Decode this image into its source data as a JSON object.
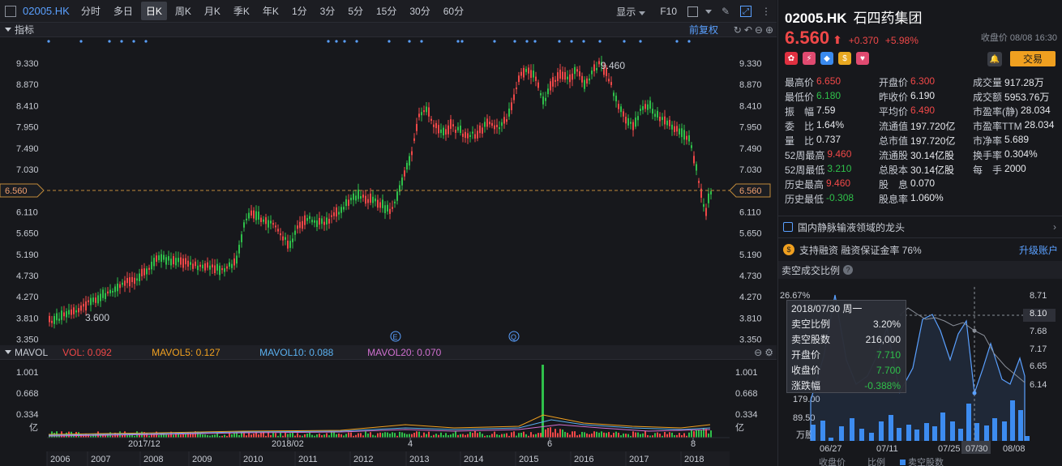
{
  "toolbar": {
    "code": "02005.HK",
    "periods": [
      "分时",
      "多日",
      "日K",
      "周K",
      "月K",
      "季K",
      "年K",
      "1分",
      "3分",
      "5分",
      "15分",
      "30分",
      "60分"
    ],
    "active_period": "日K",
    "display_label": "显示",
    "f10_label": "F10"
  },
  "indicator_bar": {
    "label": "指标",
    "fq_label": "前复权"
  },
  "price_chart": {
    "y_ticks": [
      "9.330",
      "8.870",
      "8.410",
      "7.950",
      "7.490",
      "7.030",
      "6.560",
      "6.110",
      "5.650",
      "5.190",
      "4.730",
      "4.270",
      "3.810",
      "3.350"
    ],
    "current_price_label": "6.560",
    "high_annotation": "9.460",
    "low_annotation": "3.600",
    "event_markers": [
      "E",
      "Q"
    ]
  },
  "volume_bar": {
    "label": "MAVOL",
    "vol": "VOL: 0.092",
    "ma5": "MAVOL5: 0.127",
    "ma10": "MAVOL10: 0.088",
    "ma20": "MAVOL20: 0.070",
    "colors": {
      "vol": "#f04848",
      "ma5": "#f0a020",
      "ma10": "#5ab0f0",
      "ma20": "#d070d0"
    }
  },
  "volume_chart": {
    "y_ticks": [
      "1.001",
      "0.668",
      "0.334"
    ],
    "unit": "亿",
    "month_labels": [
      "2017/12",
      "2018/02",
      "4",
      "6",
      "8"
    ],
    "year_labels": [
      "2006",
      "2007",
      "2008",
      "2009",
      "2010",
      "2011",
      "2012",
      "2013",
      "2014",
      "2015",
      "2016",
      "2017",
      "2018"
    ]
  },
  "quote": {
    "code": "02005.HK",
    "name": "石四药集团",
    "price": "6.560",
    "change": "+0.370",
    "change_pct": "+5.98%",
    "close_time": "收盘价 08/08 16:30",
    "trade_label": "交易"
  },
  "stats": [
    [
      {
        "label": "最高价",
        "value": "6.650",
        "color": "red"
      },
      {
        "label": "开盘价",
        "value": "6.300",
        "color": "red"
      },
      {
        "label": "成交量",
        "value": "917.28万",
        "color": "white"
      }
    ],
    [
      {
        "label": "最低价",
        "value": "6.180",
        "color": "green"
      },
      {
        "label": "昨收价",
        "value": "6.190",
        "color": "white"
      },
      {
        "label": "成交额",
        "value": "5953.76万",
        "color": "white"
      }
    ],
    [
      {
        "label": "振　幅",
        "value": "7.59",
        "color": "white"
      },
      {
        "label": "平均价",
        "value": "6.490",
        "color": "red"
      },
      {
        "label": "市盈率(静)",
        "value": "28.034",
        "color": "white"
      }
    ],
    [
      {
        "label": "委　比",
        "value": "1.64%",
        "color": "white"
      },
      {
        "label": "流通值",
        "value": "197.720亿",
        "color": "white"
      },
      {
        "label": "市盈率TTM",
        "value": "28.034",
        "color": "white"
      }
    ],
    [
      {
        "label": "量　比",
        "value": "0.737",
        "color": "white"
      },
      {
        "label": "总市值",
        "value": "197.720亿",
        "color": "white"
      },
      {
        "label": "市净率",
        "value": "5.689",
        "color": "white"
      }
    ],
    [
      {
        "label": "52周最高",
        "value": "9.460",
        "color": "red"
      },
      {
        "label": "流通股",
        "value": "30.14亿股",
        "color": "white"
      },
      {
        "label": "换手率",
        "value": "0.304%",
        "color": "white"
      }
    ],
    [
      {
        "label": "52周最低",
        "value": "3.210",
        "color": "green"
      },
      {
        "label": "总股本",
        "value": "30.14亿股",
        "color": "white"
      },
      {
        "label": "每　手",
        "value": "2000",
        "color": "white"
      }
    ],
    [
      {
        "label": "历史最高",
        "value": "9.460",
        "color": "red"
      },
      {
        "label": "股　息",
        "value": "0.070",
        "color": "white"
      },
      {
        "label": "",
        "value": "",
        "color": "white"
      }
    ],
    [
      {
        "label": "历史最低",
        "value": "-0.308",
        "color": "green"
      },
      {
        "label": "股息率",
        "value": "1.060%",
        "color": "white"
      },
      {
        "label": "",
        "value": "",
        "color": "white"
      }
    ]
  ],
  "news": {
    "text": "国内静脉输液领域的龙头"
  },
  "margin": {
    "text": "支持融资  融资保证金率 76%",
    "upgrade": "升级账户"
  },
  "short_sell": {
    "title": "卖空成交比例",
    "left_ticks": [
      "26.67%",
      "179.00",
      "89.50",
      "万股"
    ],
    "right_ticks": [
      "8.71",
      "8.10",
      "7.68",
      "7.17",
      "6.65",
      "6.14"
    ],
    "x_labels": [
      "06/27",
      "07/11",
      "07/25",
      "07/30",
      "08/08"
    ],
    "bottom_labels": [
      "收盘价",
      "比例",
      "卖空股数"
    ],
    "tooltip": {
      "date": "2018/07/30 周一",
      "rows": [
        {
          "k": "卖空比例",
          "v": "3.20%"
        },
        {
          "k": "卖空股数",
          "v": "216,000"
        },
        {
          "k": "开盘价",
          "v": "7.710"
        },
        {
          "k": "收盘价",
          "v": "7.700"
        },
        {
          "k": "涨跌幅",
          "v": "-0.388%"
        }
      ]
    }
  }
}
